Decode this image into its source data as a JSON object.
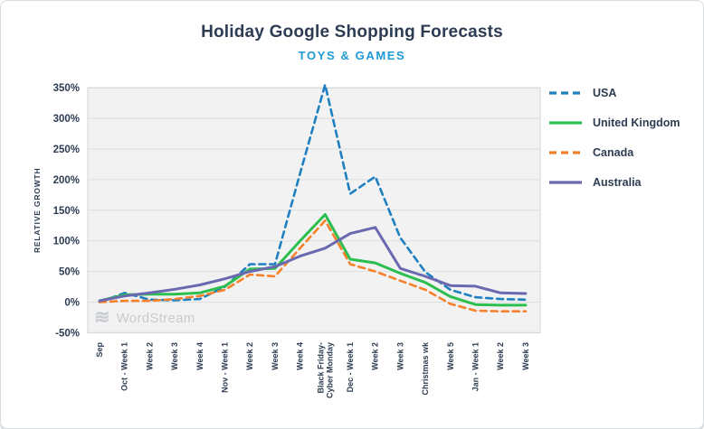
{
  "card": {
    "title": "Holiday Google Shopping Forecasts",
    "subtitle": "TOYS & GAMES"
  },
  "branding": {
    "watermark": "WordStream",
    "logo_icon": "triple-wave-icon"
  },
  "colors": {
    "title_text": "#2d3c52",
    "subtitle_text": "#1e9ad6",
    "axis_text": "#2d3c52",
    "plot_background": "#f2f2f3",
    "gridline": "#dcddde",
    "plot_border": "#d2d5d8",
    "watermark_text": "#c7cbd0",
    "usa": "#1e80c1",
    "united_kingdom": "#2cbe4e",
    "canada": "#f6812b",
    "australia": "#6a69b0"
  },
  "chart_data": {
    "type": "line",
    "title": "Holiday Google Shopping Forecasts",
    "subtitle": "TOYS & GAMES",
    "xlabel": "",
    "ylabel": "RELATIVE GROWTH",
    "ylim": [
      -50,
      350
    ],
    "ytick_step": 50,
    "ytick_suffix": "%",
    "grid": true,
    "legend_position": "right",
    "categories": [
      "Sep",
      "Oct - Week 1",
      "Week 2",
      "Week 3",
      "Week 4",
      "Nov - Week 1",
      "Week 2",
      "Week 3",
      "Week 4",
      "Black Friday-\nCyber Monday",
      "Dec - Week 1",
      "Week 2",
      "Week 3",
      "Christmas wk",
      "Week 5",
      "Jan - Week 1",
      "Week 2",
      "Week 3"
    ],
    "series": [
      {
        "name": "USA",
        "color": "#1e80c1",
        "dash": true,
        "values": [
          0,
          15,
          4,
          3,
          5,
          25,
          62,
          62,
          210,
          355,
          177,
          205,
          105,
          49,
          20,
          8,
          5,
          4
        ]
      },
      {
        "name": "United Kingdom",
        "color": "#2cbe4e",
        "dash": false,
        "values": [
          2,
          12,
          13,
          13,
          15,
          26,
          54,
          55,
          100,
          143,
          70,
          64,
          47,
          32,
          9,
          -4,
          -5,
          -5
        ]
      },
      {
        "name": "Canada",
        "color": "#f6812b",
        "dash": true,
        "values": [
          0,
          2,
          2,
          5,
          10,
          20,
          45,
          42,
          88,
          133,
          62,
          50,
          35,
          20,
          -3,
          -14,
          -15,
          -15
        ]
      },
      {
        "name": "Australia",
        "color": "#6a69b0",
        "dash": false,
        "values": [
          2,
          10,
          15,
          21,
          28,
          38,
          50,
          58,
          75,
          88,
          112,
          122,
          55,
          42,
          27,
          26,
          15,
          14
        ]
      }
    ]
  }
}
